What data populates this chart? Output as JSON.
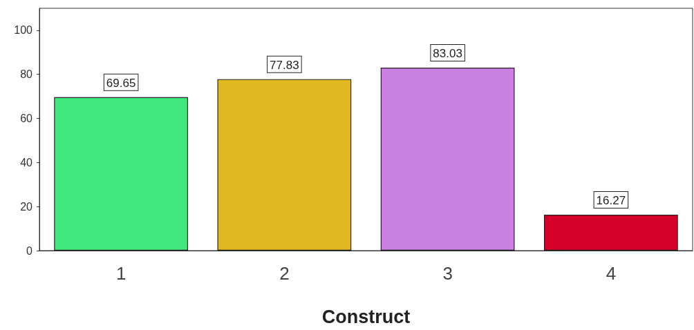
{
  "chart_data": {
    "type": "bar",
    "xlabel": "Construct",
    "categories": [
      "1",
      "2",
      "3",
      "4"
    ],
    "values": [
      69.65,
      77.83,
      83.03,
      16.27
    ],
    "colors": [
      "#41e87d",
      "#e0b820",
      "#c980e0",
      "#d4002a"
    ],
    "ylim": [
      0,
      110
    ],
    "yticks": [
      0,
      20,
      40,
      60,
      80,
      100
    ],
    "data_labels": true,
    "grid": false
  }
}
